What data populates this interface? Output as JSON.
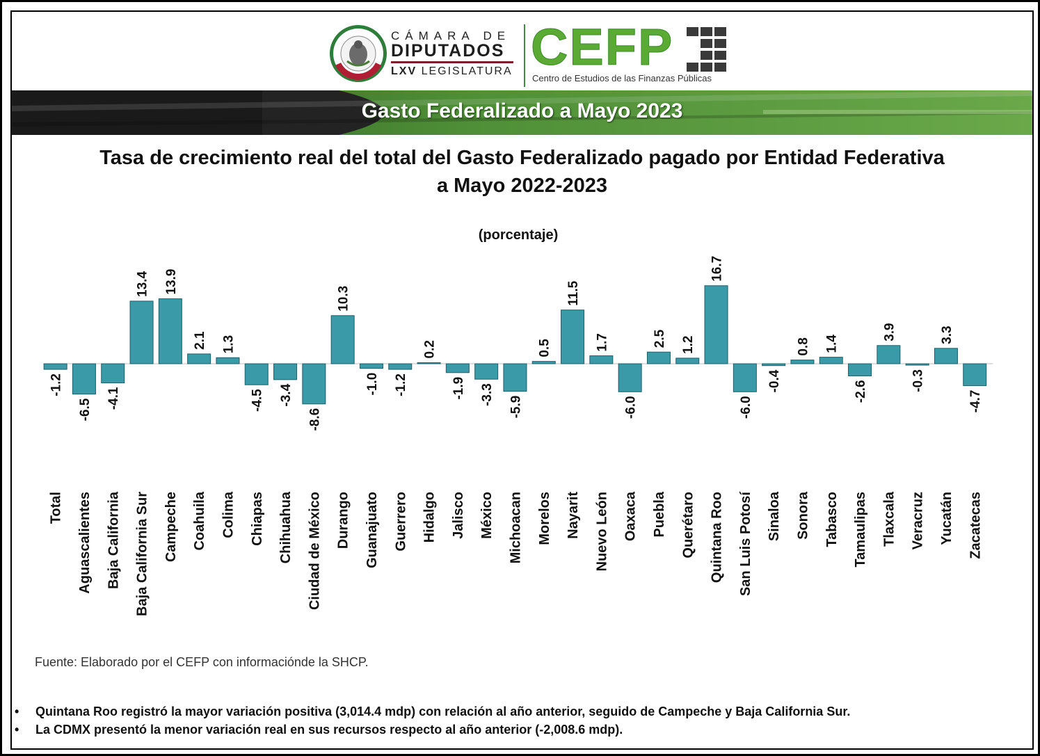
{
  "header": {
    "org_line1": "CÁMARA DE",
    "org_line2": "DIPUTADOS",
    "org_line3_bold": "LXV",
    "org_line3_rest": " LEGISLATURA",
    "cefp_logo": "CEFP",
    "cefp_subtitle": "Centro de Estudios de las Finanzas Públicas",
    "seal_icon": "mexican-coat-of-arms-icon",
    "grid_icon": "building-grid-icon"
  },
  "banner": {
    "title": "Gasto Federalizado a Mayo 2023"
  },
  "colors": {
    "bar_fill": "#3a9aa8",
    "bar_stroke": "#1e5f68",
    "banner_dark": "#1a1a1a",
    "banner_green": "#4f8f37",
    "cefp_green": "#5aaa34"
  },
  "chart_data": {
    "type": "bar",
    "title": "Tasa de crecimiento real del total del Gasto Federalizado pagado por Entidad Federativa a Mayo 2022-2023",
    "title_line1": "Tasa de crecimiento real del total del Gasto Federalizado pagado por Entidad Federativa",
    "title_line2": "a Mayo 2022-2023",
    "subtitle": "(porcentaje)",
    "xlabel": "",
    "ylabel": "",
    "grid": false,
    "legend": "none",
    "categories": [
      "Total",
      "Aguascalientes",
      "Baja California",
      "Baja California Sur",
      "Campeche",
      "Coahuila",
      "Colima",
      "Chiapas",
      "Chihuahua",
      "Ciudad de México",
      "Durango",
      "Guanajuato",
      "Guerrero",
      "Hidalgo",
      "Jalisco",
      "México",
      "Michoacan",
      "Morelos",
      "Nayarit",
      "Nuevo León",
      "Oaxaca",
      "Puebla",
      "Querétaro",
      "Quintana Roo",
      "San Luis Potosí",
      "Sinaloa",
      "Sonora",
      "Tabasco",
      "Tamaulipas",
      "Tlaxcala",
      "Veracruz",
      "Yucatán",
      "Zacatecas"
    ],
    "values": [
      -1.2,
      -6.5,
      -4.1,
      13.4,
      13.9,
      2.1,
      1.3,
      -4.5,
      -3.4,
      -8.6,
      10.3,
      -1.0,
      -1.2,
      0.2,
      -1.9,
      -3.3,
      -5.9,
      0.5,
      11.5,
      1.7,
      -6.0,
      2.5,
      1.2,
      16.7,
      -6.0,
      -0.4,
      0.8,
      1.4,
      -2.6,
      3.9,
      -0.3,
      3.3,
      -4.7
    ],
    "value_labels": [
      "-1.2",
      "-6.5",
      "-4.1",
      "13.4",
      "13.9",
      "2.1",
      "1.3",
      "-4.5",
      "-3.4",
      "-8.6",
      "10.3",
      "-1.0",
      "-1.2",
      "0.2",
      "-1.9",
      "-3.3",
      "-5.9",
      "0.5",
      "11.5",
      "1.7",
      "-6.0",
      "2.5",
      "1.2",
      "16.7",
      "-6.0",
      "-0.4",
      "0.8",
      "1.4",
      "-2.6",
      "3.9",
      "-0.3",
      "3.3",
      "-4.7"
    ]
  },
  "source": "Fuente: Elaborado por el CEFP con informacióndе la SHCP.",
  "notes": [
    {
      "bullet": "•",
      "text": "Quintana Roo registró la mayor variación positiva (3,014.4 mdp) con relación al año anterior, seguido de Campeche y Baja California Sur."
    },
    {
      "bullet": "•",
      "text": "La CDMX presentó la menor variación real en sus recursos respecto al año anterior (-2,008.6 mdp)."
    }
  ]
}
